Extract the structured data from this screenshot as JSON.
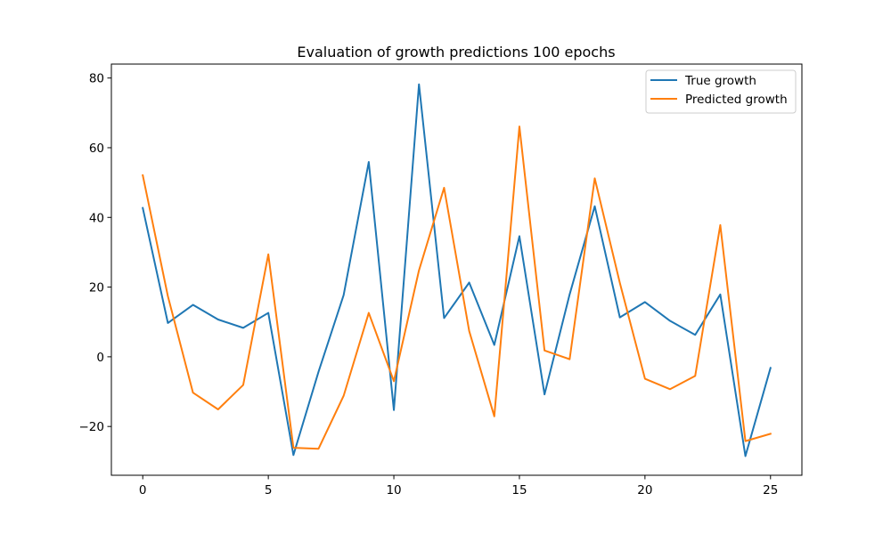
{
  "chart_data": {
    "type": "line",
    "title": "Evaluation of growth predictions 100 epochs",
    "xlabel": "",
    "ylabel": "",
    "xlim": [
      -1.25,
      26.25
    ],
    "ylim": [
      -34,
      84
    ],
    "xticks": [
      0,
      5,
      10,
      15,
      20,
      25
    ],
    "yticks": [
      -20,
      0,
      20,
      40,
      60,
      80
    ],
    "xtick_labels": [
      "0",
      "5",
      "10",
      "15",
      "20",
      "25"
    ],
    "ytick_labels": [
      "−20",
      "0",
      "20",
      "40",
      "60",
      "80"
    ],
    "grid": false,
    "legend_position": "top-right",
    "x": [
      0,
      1,
      2,
      3,
      4,
      5,
      6,
      7,
      8,
      9,
      10,
      11,
      12,
      13,
      14,
      15,
      16,
      17,
      18,
      19,
      20,
      21,
      22,
      23,
      24,
      25
    ],
    "series": [
      {
        "name": "True growth",
        "color": "#1f77b4",
        "values": [
          42.7,
          9.7,
          14.9,
          10.7,
          8.3,
          12.6,
          -28.2,
          -4.3,
          17.7,
          55.9,
          -15.3,
          78.2,
          11.1,
          21.3,
          3.4,
          34.6,
          -10.8,
          17.9,
          43.2,
          11.3,
          15.7,
          10.3,
          6.3,
          17.9,
          -28.5,
          -3.2
        ]
      },
      {
        "name": "Predicted growth",
        "color": "#ff7f0e",
        "values": [
          52.1,
          17.4,
          -10.3,
          -15.1,
          -8.1,
          29.4,
          -26.1,
          -26.4,
          -11.2,
          12.6,
          -7.0,
          24.8,
          48.5,
          7.4,
          -17.1,
          66.1,
          1.8,
          -0.7,
          51.2,
          21.2,
          -6.3,
          -9.3,
          -5.5,
          37.8,
          -24.2,
          -22.1
        ]
      }
    ]
  }
}
